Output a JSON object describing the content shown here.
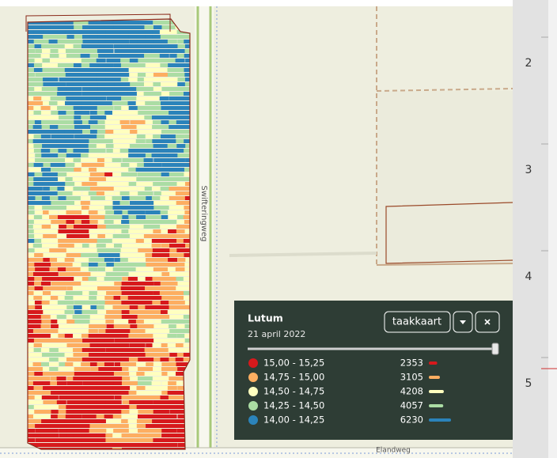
{
  "map": {
    "road_labels": [
      "Swifteringweg",
      "Elandweg"
    ]
  },
  "ruler": {
    "labels": [
      2,
      3,
      4,
      5
    ]
  },
  "legend": {
    "title": "Lutum",
    "date": "21 april 2022",
    "button": "taakkaart",
    "classes": [
      {
        "label": "15,00 - 15,25",
        "count": 2353,
        "color": "#d7191c"
      },
      {
        "label": "14,75 - 15,00",
        "count": 3105,
        "color": "#fdae61"
      },
      {
        "label": "14,50 - 14,75",
        "count": 4208,
        "color": "#ffffbf"
      },
      {
        "label": "14,25 - 14,50",
        "count": 4057,
        "color": "#abdda4"
      },
      {
        "label": "14,00 - 14,25",
        "count": 6230,
        "color": "#2b83ba"
      }
    ]
  }
}
